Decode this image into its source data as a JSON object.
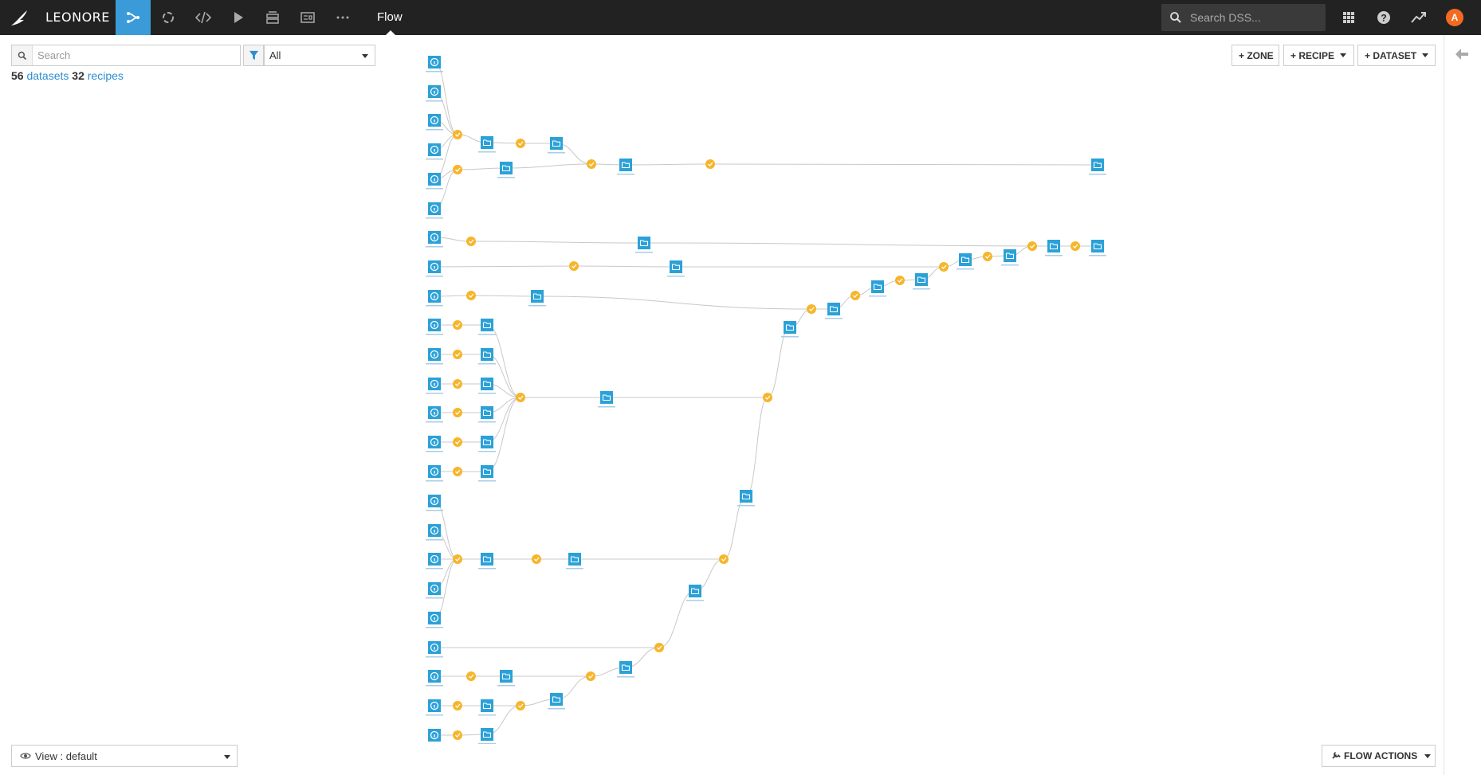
{
  "topbar": {
    "project_name": "LEONORE",
    "page_label": "Flow",
    "search_placeholder": "Search DSS...",
    "avatar_initial": "A",
    "nav_icons": [
      "flow-icon",
      "jobs-icon",
      "code-icon",
      "run-icon",
      "datasets-icon",
      "dashboard-icon",
      "more-icon"
    ],
    "right_icons": [
      "apps-grid-icon",
      "help-icon",
      "activity-icon"
    ]
  },
  "sidebar": {
    "search_placeholder": "Search",
    "filter_value": "All",
    "datasets_count": "56",
    "datasets_label": "datasets",
    "recipes_count": "32",
    "recipes_label": "recipes",
    "view_label": "View : default"
  },
  "toolbar": {
    "zone_label": "+ ZONE",
    "recipe_label": "+ RECIPE",
    "dataset_label": "+ DATASET",
    "flow_actions_label": "FLOW ACTIONS"
  },
  "colors": {
    "topbar_bg": "#222222",
    "accent": "#3a9bd8",
    "dataset_node": "#2ba1d8",
    "recipe_node": "#f7b52a",
    "edge": "#c8c8c8",
    "avatar": "#f26b21"
  }
}
